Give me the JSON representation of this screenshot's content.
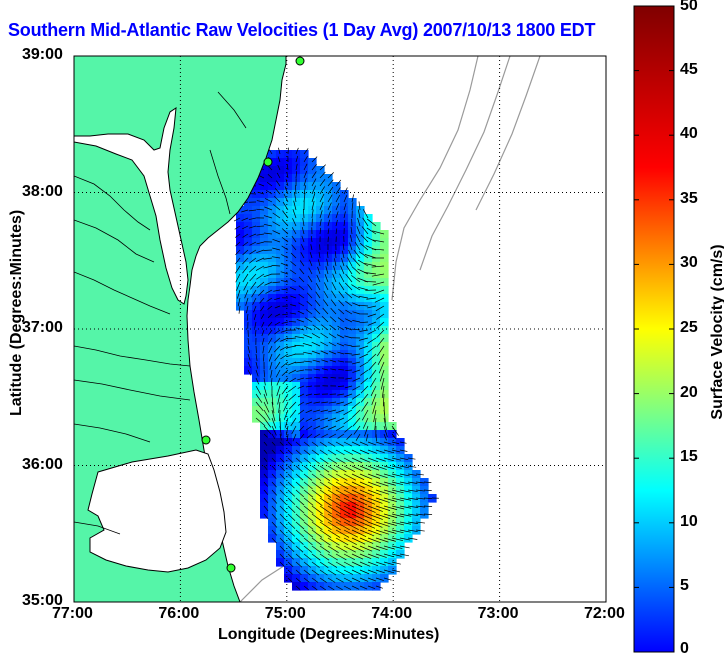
{
  "title": "Southern Mid-Atlantic Raw Velocities (1 Day Avg) 2007/10/13 1800 EDT",
  "map": {
    "xlabel": "Longitude (Degrees:Minutes)",
    "ylabel": "Latitude (Degrees:Minutes)",
    "x_ticks": [
      "77:00",
      "76:00",
      "75:00",
      "74:00",
      "73:00",
      "72:00"
    ],
    "y_ticks": [
      "39:00",
      "38:00",
      "37:00",
      "36:00",
      "35:00"
    ],
    "land_color": "#55f5a8",
    "grid": true,
    "overlays": [
      "coastline",
      "bathymetry-contours",
      "hf-radar-sites",
      "velocity-vectors"
    ]
  },
  "colorbar": {
    "label": "Surface Velocity (cm/s)",
    "min": 0,
    "max": 50,
    "ticks": [
      "0",
      "5",
      "10",
      "15",
      "20",
      "25",
      "30",
      "35",
      "40",
      "45",
      "50"
    ],
    "colormap": "jet"
  }
}
